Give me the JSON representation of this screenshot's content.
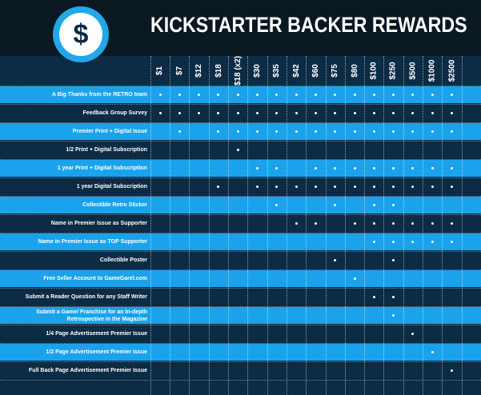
{
  "header": {
    "title": "KICKSTARTER BACKER REWARDS",
    "logo_symbol": "$",
    "logo_icon": "dollar-sign-icon"
  },
  "colors": {
    "background": "#0c2b45",
    "header_band": "#0a1822",
    "highlight_row": "#1aa3ec",
    "logo_ring": "#22a7e8"
  },
  "tiers": [
    "$1",
    "$7",
    "$12",
    "$18",
    "$18 (x2)",
    "$30",
    "$35",
    "$42",
    "$60",
    "$75",
    "$80",
    "$100",
    "$250",
    "$500",
    "$1000",
    "$2500"
  ],
  "rows": [
    {
      "label": "A Big Thanks from the RETRO team",
      "highlight": true,
      "marks": [
        1,
        1,
        1,
        1,
        1,
        1,
        1,
        1,
        1,
        1,
        1,
        1,
        1,
        1,
        1,
        1
      ]
    },
    {
      "label": "Feedback Group Survey",
      "highlight": false,
      "marks": [
        1,
        1,
        1,
        1,
        1,
        1,
        1,
        1,
        1,
        1,
        1,
        1,
        1,
        1,
        1,
        1
      ]
    },
    {
      "label": "Premier Print + Digital Issue",
      "highlight": true,
      "marks": [
        0,
        1,
        0,
        1,
        1,
        1,
        1,
        1,
        1,
        1,
        1,
        1,
        1,
        1,
        1,
        1
      ]
    },
    {
      "label": "1/2 Print + Digital Subscription",
      "highlight": false,
      "marks": [
        0,
        0,
        0,
        0,
        1,
        0,
        0,
        0,
        0,
        0,
        0,
        0,
        0,
        0,
        0,
        0
      ]
    },
    {
      "label": "1 year Print + Digital Subscription",
      "highlight": true,
      "marks": [
        0,
        0,
        0,
        0,
        0,
        1,
        1,
        0,
        1,
        1,
        1,
        1,
        1,
        1,
        1,
        1
      ]
    },
    {
      "label": "1 year Digital Subscription",
      "highlight": false,
      "marks": [
        0,
        0,
        0,
        1,
        0,
        1,
        1,
        1,
        1,
        1,
        1,
        1,
        1,
        1,
        1,
        1
      ]
    },
    {
      "label": "Collectible Retro Sticker",
      "highlight": true,
      "marks": [
        0,
        0,
        0,
        0,
        0,
        0,
        1,
        0,
        0,
        1,
        0,
        1,
        1,
        0,
        0,
        0
      ]
    },
    {
      "label": "Name in Premier Issue as Supporter",
      "highlight": false,
      "marks": [
        0,
        0,
        0,
        0,
        0,
        0,
        0,
        1,
        1,
        0,
        1,
        1,
        1,
        1,
        1,
        1
      ]
    },
    {
      "label": "Name in Premier Issue as TOP Supporter",
      "highlight": true,
      "marks": [
        0,
        0,
        0,
        0,
        0,
        0,
        0,
        0,
        0,
        0,
        0,
        1,
        1,
        1,
        1,
        1
      ]
    },
    {
      "label": "Collectible Poster",
      "highlight": false,
      "marks": [
        0,
        0,
        0,
        0,
        0,
        0,
        0,
        0,
        0,
        1,
        0,
        0,
        1,
        0,
        0,
        0
      ]
    },
    {
      "label": "Free Seller Account to GameGarel.com",
      "highlight": true,
      "marks": [
        0,
        0,
        0,
        0,
        0,
        0,
        0,
        0,
        0,
        0,
        1,
        0,
        0,
        0,
        0,
        0
      ]
    },
    {
      "label": "Submit a Reader Question for any Staff Writer",
      "highlight": false,
      "marks": [
        0,
        0,
        0,
        0,
        0,
        0,
        0,
        0,
        0,
        0,
        0,
        1,
        1,
        0,
        0,
        0
      ]
    },
    {
      "label": "Submit a Game/ Franchise for an In-depth Retrospective in the Magazine",
      "highlight": true,
      "marks": [
        0,
        0,
        0,
        0,
        0,
        0,
        0,
        0,
        0,
        0,
        0,
        0,
        1,
        0,
        0,
        0
      ]
    },
    {
      "label": "1/4 Page Advertisement Premier Issue",
      "highlight": false,
      "marks": [
        0,
        0,
        0,
        0,
        0,
        0,
        0,
        0,
        0,
        0,
        0,
        0,
        0,
        1,
        0,
        0
      ]
    },
    {
      "label": "1/2 Page Advertisement Premier Issue",
      "highlight": true,
      "marks": [
        0,
        0,
        0,
        0,
        0,
        0,
        0,
        0,
        0,
        0,
        0,
        0,
        0,
        0,
        1,
        0
      ]
    },
    {
      "label": "Full Back Page Advertisement Premier Issue",
      "highlight": false,
      "marks": [
        0,
        0,
        0,
        0,
        0,
        0,
        0,
        0,
        0,
        0,
        0,
        0,
        0,
        0,
        0,
        1
      ]
    }
  ]
}
